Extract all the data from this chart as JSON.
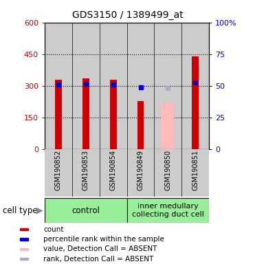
{
  "title": "GDS3150 / 1389499_at",
  "samples": [
    "GSM190852",
    "GSM190853",
    "GSM190854",
    "GSM190849",
    "GSM190850",
    "GSM190851"
  ],
  "count_values": [
    328,
    335,
    330,
    228,
    null,
    438
  ],
  "count_absent_values": [
    null,
    null,
    null,
    null,
    218,
    null
  ],
  "percentile_values": [
    307,
    308,
    307,
    293,
    null,
    315
  ],
  "percentile_absent_values": [
    null,
    null,
    null,
    null,
    290,
    null
  ],
  "count_color": "#cc0000",
  "count_absent_color": "#ffbbbb",
  "percentile_color": "#0000cc",
  "percentile_absent_color": "#aaaacc",
  "ylim_left": [
    0,
    600
  ],
  "yticks_left": [
    0,
    150,
    300,
    450,
    600
  ],
  "yticks_right": [
    0,
    25,
    50,
    75,
    100
  ],
  "yticklabels_right": [
    "0",
    "25",
    "50",
    "75",
    "100%"
  ],
  "bar_width": 0.25,
  "cell_groups": [
    {
      "label": "control",
      "span": [
        0,
        3
      ],
      "color": "#99ee99"
    },
    {
      "label": "inner medullary\ncollecting duct cell",
      "span": [
        3,
        6
      ],
      "color": "#99ee99"
    }
  ],
  "xlabel_color": "#cc0000",
  "ylabel_right_color": "#0000cc",
  "bg_sample_area": "#cccccc",
  "legend_items": [
    {
      "color": "#cc0000",
      "label": "count"
    },
    {
      "color": "#0000cc",
      "label": "percentile rank within the sample"
    },
    {
      "color": "#ffbbbb",
      "label": "value, Detection Call = ABSENT"
    },
    {
      "color": "#aaaacc",
      "label": "rank, Detection Call = ABSENT"
    }
  ]
}
